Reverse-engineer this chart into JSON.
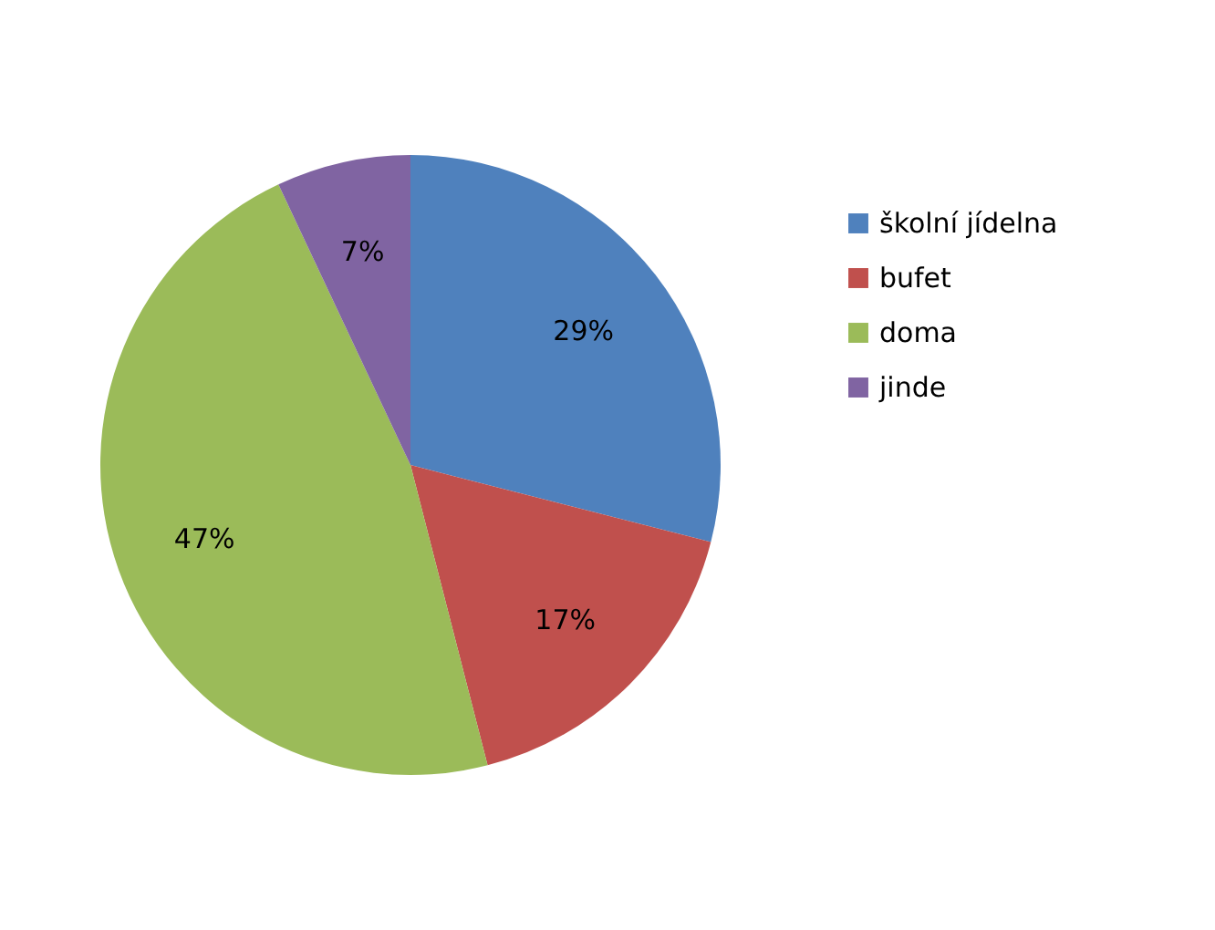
{
  "chart_data": {
    "type": "pie",
    "categories": [
      "školní jídelna",
      "bufet",
      "doma",
      "jinde"
    ],
    "values": [
      29,
      17,
      47,
      7
    ],
    "value_labels": [
      "29%",
      "17%",
      "47%",
      "7%"
    ],
    "colors": [
      "#4f81bd",
      "#c0504d",
      "#9bbb59",
      "#8064a2"
    ],
    "legend": "right"
  }
}
